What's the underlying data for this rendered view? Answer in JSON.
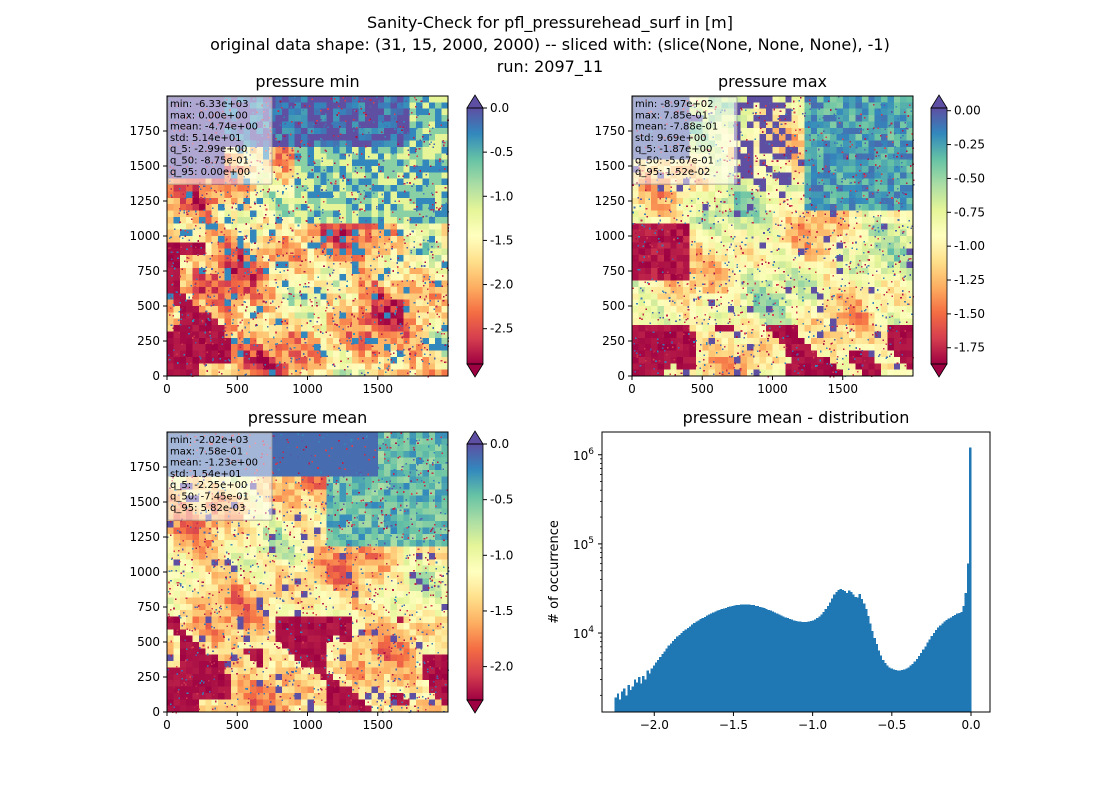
{
  "figure": {
    "title_lines": [
      "Sanity-Check for pfl_pressurehead_surf in [m]",
      "original data shape: (31, 15, 2000, 2000) -- sliced with: (slice(None, None, None), -1)",
      "run: 2097_11"
    ]
  },
  "chart_data": [
    {
      "type": "heatmap",
      "title": "pressure min",
      "colormap": "Spectral",
      "xlim": [
        0,
        2000
      ],
      "ylim": [
        0,
        2000
      ],
      "x_ticks": [
        "0",
        "500",
        "1000",
        "1500"
      ],
      "y_ticks": [
        "0",
        "250",
        "500",
        "750",
        "1000",
        "1250",
        "1500",
        "1750"
      ],
      "colorbar": {
        "vmin": -2.9,
        "vmax": 0.0,
        "ticks": [
          "0.0",
          "-0.5",
          "-1.0",
          "-1.5",
          "-2.0",
          "-2.5"
        ],
        "extend": "both"
      },
      "stats": [
        "min: -6.33e+03",
        "max: 0.00e+00",
        "mean: -4.74e+00",
        "std: 5.14e+01",
        "q_5: -2.99e+00",
        "q_50: -8.75e-01",
        "q_95: 0.00e+00"
      ]
    },
    {
      "type": "heatmap",
      "title": "pressure max",
      "colormap": "Spectral",
      "xlim": [
        0,
        2000
      ],
      "ylim": [
        0,
        2000
      ],
      "x_ticks": [
        "0",
        "500",
        "1000",
        "1500"
      ],
      "y_ticks": [
        "0",
        "250",
        "500",
        "750",
        "1000",
        "1250",
        "1500",
        "1750"
      ],
      "colorbar": {
        "vmin": -1.87,
        "vmax": 0.02,
        "ticks": [
          "0.00",
          "-0.25",
          "-0.50",
          "-0.75",
          "-1.00",
          "-1.25",
          "-1.50",
          "-1.75"
        ],
        "extend": "both"
      },
      "stats": [
        "min: -8.97e+02",
        "max: 7.85e-01",
        "mean: -7.88e-01",
        "std: 9.69e+00",
        "q_5: -1.87e+00",
        "q_50: -5.67e-01",
        "q_95: 1.52e-02"
      ]
    },
    {
      "type": "heatmap",
      "title": "pressure mean",
      "colormap": "Spectral",
      "xlim": [
        0,
        2000
      ],
      "ylim": [
        0,
        2000
      ],
      "x_ticks": [
        "0",
        "500",
        "1000",
        "1500"
      ],
      "y_ticks": [
        "0",
        "250",
        "500",
        "750",
        "1000",
        "1250",
        "1500",
        "1750"
      ],
      "colorbar": {
        "vmin": -2.3,
        "vmax": 0.0,
        "ticks": [
          "0.0",
          "-0.5",
          "-1.0",
          "-1.5",
          "-2.0"
        ],
        "extend": "both"
      },
      "stats": [
        "min: -2.02e+03",
        "max: 7.58e-01",
        "mean: -1.23e+00",
        "std: 1.54e+01",
        "q_5: -2.25e+00",
        "q_50: -7.45e-01",
        "q_95: 5.82e-03"
      ]
    },
    {
      "type": "bar",
      "title": "pressure mean - distribution",
      "ylabel": "# of occurrence",
      "xlabel": "",
      "yscale": "log",
      "color": "#1f77b4",
      "xlim": [
        -2.33,
        0.12
      ],
      "ylim": [
        1300,
        1800000
      ],
      "x_ticks": [
        "−2.0",
        "−1.5",
        "−1.0",
        "−0.5",
        "0.0"
      ],
      "y_tick_labels": [
        "10",
        "10",
        "10"
      ],
      "y_tick_exponents": [
        "4",
        "5",
        "6"
      ],
      "bin_range": [
        -2.25,
        0.0
      ],
      "counts": [
        1900,
        2100,
        1800,
        2200,
        2400,
        2000,
        2600,
        2300,
        2500,
        3000,
        2800,
        3200,
        2700,
        3300,
        3000,
        3800,
        3500,
        4000,
        4300,
        4700,
        5000,
        5400,
        5800,
        6200,
        6700,
        7200,
        7600,
        8100,
        8600,
        9100,
        9500,
        10000,
        10500,
        11000,
        11400,
        11900,
        12400,
        12900,
        13400,
        13800,
        14300,
        14800,
        15200,
        15700,
        16100,
        16500,
        17000,
        17400,
        17800,
        18200,
        18500,
        18900,
        19200,
        19500,
        19800,
        20000,
        20300,
        20500,
        20700,
        20800,
        21000,
        21000,
        20900,
        20800,
        20700,
        20500,
        20200,
        20000,
        19600,
        19300,
        19000,
        18600,
        18200,
        17800,
        17400,
        17000,
        16600,
        16200,
        15800,
        15400,
        15000,
        14700,
        14400,
        14100,
        13900,
        13700,
        13500,
        13400,
        13300,
        13300,
        13300,
        13400,
        13600,
        13800,
        14200,
        14700,
        15400,
        16200,
        17200,
        18500,
        20000,
        22000,
        24500,
        27000,
        29000,
        30500,
        31000,
        30500,
        29500,
        28000,
        30000,
        29000,
        27000,
        25500,
        25000,
        27500,
        24000,
        21500,
        18500,
        15500,
        12800,
        10500,
        8800,
        7500,
        6400,
        5600,
        5000,
        4600,
        4300,
        4100,
        4000,
        3900,
        3850,
        3800,
        3800,
        3850,
        3900,
        4000,
        4100,
        4300,
        4500,
        4800,
        5100,
        5500,
        6000,
        6500,
        7100,
        7800,
        8500,
        9300,
        10000,
        10800,
        11500,
        12200,
        12800,
        13500,
        14000,
        14600,
        15000,
        15600,
        16000,
        16500,
        16800,
        17300,
        20000,
        28000,
        60000,
        1200000
      ]
    }
  ]
}
